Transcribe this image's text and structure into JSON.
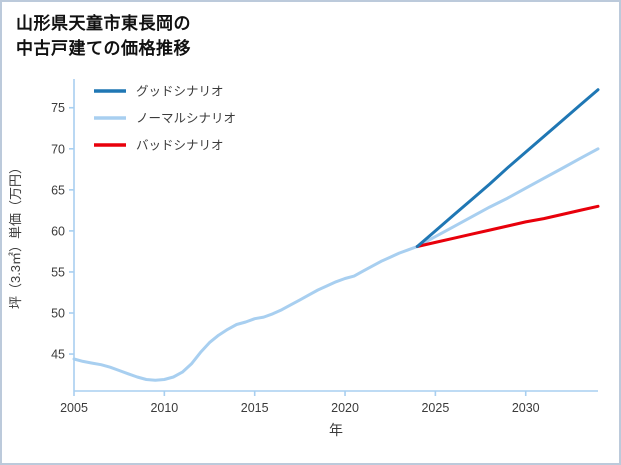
{
  "page": {
    "title_line1": "山形県天童市東長岡の",
    "title_line2": "中古戸建ての価格推移"
  },
  "chart_data": {
    "type": "line",
    "title": "山形県天童市東長岡の中古戸建ての価格推移",
    "xlabel": "年",
    "ylabel": "坪（3.3㎡）単価（万円）",
    "xlim": [
      2005,
      2034
    ],
    "ylim": [
      40.5,
      78.5
    ],
    "xticks": [
      2005,
      2010,
      2015,
      2020,
      2025,
      2030
    ],
    "yticks": [
      45,
      50,
      55,
      60,
      65,
      70,
      75
    ],
    "grid": false,
    "legend_position": "upper-left",
    "axis_color": "#a8cff0",
    "series": [
      {
        "id": "good-scenario",
        "name": "グッドシナリオ",
        "color": "#1f77b4",
        "x": [
          2024,
          2025,
          2026,
          2027,
          2028,
          2029,
          2030,
          2031,
          2032,
          2033,
          2034
        ],
        "y": [
          58.1,
          60.0,
          61.9,
          63.8,
          65.7,
          67.7,
          69.6,
          71.5,
          73.4,
          75.3,
          77.2
        ]
      },
      {
        "id": "normal-scenario",
        "name": "ノーマルシナリオ",
        "color": "#a8cff0",
        "x": [
          2005,
          2005.5,
          2006,
          2006.5,
          2007,
          2007.5,
          2008,
          2008.5,
          2009,
          2009.5,
          2010,
          2010.5,
          2011,
          2011.5,
          2012,
          2012.5,
          2013,
          2013.5,
          2014,
          2014.5,
          2015,
          2015.5,
          2016,
          2016.5,
          2017,
          2017.5,
          2018,
          2018.5,
          2019,
          2019.5,
          2020,
          2020.5,
          2021,
          2021.5,
          2022,
          2022.5,
          2023,
          2023.5,
          2024,
          2025,
          2026,
          2027,
          2028,
          2029,
          2030,
          2031,
          2032,
          2033,
          2034
        ],
        "y": [
          44.4,
          44.1,
          43.9,
          43.7,
          43.4,
          43.0,
          42.6,
          42.2,
          41.9,
          41.8,
          41.9,
          42.2,
          42.8,
          43.8,
          45.2,
          46.4,
          47.3,
          48.0,
          48.6,
          48.9,
          49.3,
          49.5,
          49.9,
          50.4,
          51.0,
          51.6,
          52.2,
          52.8,
          53.3,
          53.8,
          54.2,
          54.5,
          55.1,
          55.7,
          56.3,
          56.8,
          57.3,
          57.7,
          58.1,
          59.3,
          60.5,
          61.7,
          62.9,
          64.0,
          65.2,
          66.4,
          67.6,
          68.8,
          70.0
        ]
      },
      {
        "id": "bad-scenario",
        "name": "バッドシナリオ",
        "color": "#e8000b",
        "x": [
          2024,
          2025,
          2026,
          2027,
          2028,
          2029,
          2030,
          2031,
          2032,
          2033,
          2034
        ],
        "y": [
          58.1,
          58.6,
          59.1,
          59.6,
          60.1,
          60.6,
          61.1,
          61.5,
          62.0,
          62.5,
          63.0
        ]
      }
    ]
  }
}
